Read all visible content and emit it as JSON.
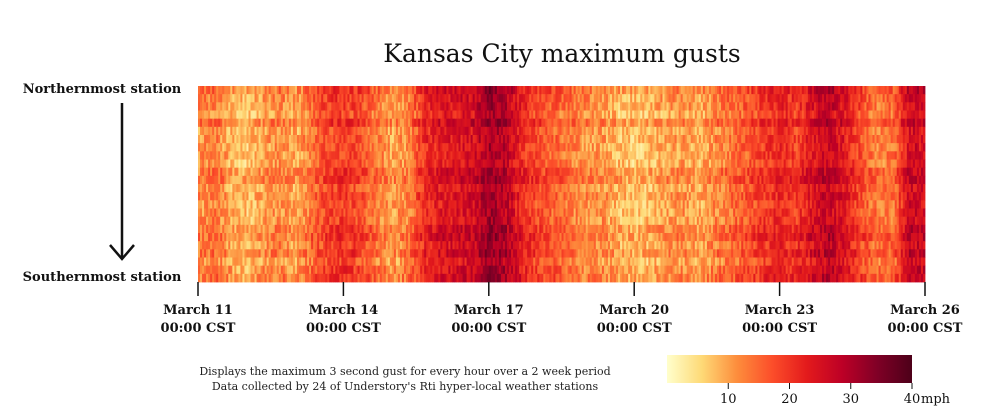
{
  "chart_data": {
    "type": "heatmap",
    "title": "Kansas City maximum gusts",
    "y_top_label": "Northernmost station",
    "y_bottom_label": "Southernmost station",
    "rows": 24,
    "hours": 360,
    "x_ticks": [
      {
        "hour": 0,
        "date": "March 11",
        "time": "00:00 CST"
      },
      {
        "hour": 72,
        "date": "March 14",
        "time": "00:00 CST"
      },
      {
        "hour": 144,
        "date": "March 17",
        "time": "00:00 CST"
      },
      {
        "hour": 216,
        "date": "March 20",
        "time": "00:00 CST"
      },
      {
        "hour": 288,
        "date": "March 23",
        "time": "00:00 CST"
      },
      {
        "hour": 360,
        "date": "March 26",
        "time": "00:00 CST"
      }
    ],
    "colorbar": {
      "min": 0,
      "max": 40,
      "ticks": [
        10,
        20,
        30,
        40
      ],
      "tick_labels": [
        "10",
        "20",
        "30",
        "40"
      ],
      "unit": "mph",
      "colors": [
        "#ffffcc",
        "#fed976",
        "#fd8d3c",
        "#fc4e2a",
        "#e31a1c",
        "#bd0026",
        "#800026",
        "#4d0019"
      ]
    },
    "gust_profile": [
      {
        "hour": 0,
        "mph": 12
      },
      {
        "hour": 8,
        "mph": 14
      },
      {
        "hour": 16,
        "mph": 10
      },
      {
        "hour": 24,
        "mph": 8
      },
      {
        "hour": 32,
        "mph": 11
      },
      {
        "hour": 40,
        "mph": 13
      },
      {
        "hour": 48,
        "mph": 10
      },
      {
        "hour": 56,
        "mph": 15
      },
      {
        "hour": 64,
        "mph": 19
      },
      {
        "hour": 72,
        "mph": 20
      },
      {
        "hour": 80,
        "mph": 18
      },
      {
        "hour": 88,
        "mph": 14
      },
      {
        "hour": 96,
        "mph": 11
      },
      {
        "hour": 104,
        "mph": 13
      },
      {
        "hour": 112,
        "mph": 22
      },
      {
        "hour": 120,
        "mph": 24
      },
      {
        "hour": 128,
        "mph": 25
      },
      {
        "hour": 136,
        "mph": 26
      },
      {
        "hour": 144,
        "mph": 32
      },
      {
        "hour": 152,
        "mph": 29
      },
      {
        "hour": 160,
        "mph": 22
      },
      {
        "hour": 168,
        "mph": 18
      },
      {
        "hour": 176,
        "mph": 16
      },
      {
        "hour": 184,
        "mph": 14
      },
      {
        "hour": 192,
        "mph": 12
      },
      {
        "hour": 200,
        "mph": 12
      },
      {
        "hour": 208,
        "mph": 9
      },
      {
        "hour": 216,
        "mph": 8
      },
      {
        "hour": 224,
        "mph": 9
      },
      {
        "hour": 232,
        "mph": 11
      },
      {
        "hour": 240,
        "mph": 12
      },
      {
        "hour": 248,
        "mph": 10
      },
      {
        "hour": 256,
        "mph": 13
      },
      {
        "hour": 264,
        "mph": 15
      },
      {
        "hour": 272,
        "mph": 17
      },
      {
        "hour": 280,
        "mph": 20
      },
      {
        "hour": 288,
        "mph": 22
      },
      {
        "hour": 296,
        "mph": 20
      },
      {
        "hour": 304,
        "mph": 25
      },
      {
        "hour": 312,
        "mph": 28
      },
      {
        "hour": 320,
        "mph": 24
      },
      {
        "hour": 328,
        "mph": 18
      },
      {
        "hour": 336,
        "mph": 14
      },
      {
        "hour": 344,
        "mph": 15
      },
      {
        "hour": 352,
        "mph": 27
      },
      {
        "hour": 360,
        "mph": 26
      }
    ]
  },
  "caption": {
    "line1": "Displays the maximum 3 second gust for every hour over a 2 week period",
    "line2": "Data collected by 24 of Understory's Rti hyper-local weather stations"
  }
}
